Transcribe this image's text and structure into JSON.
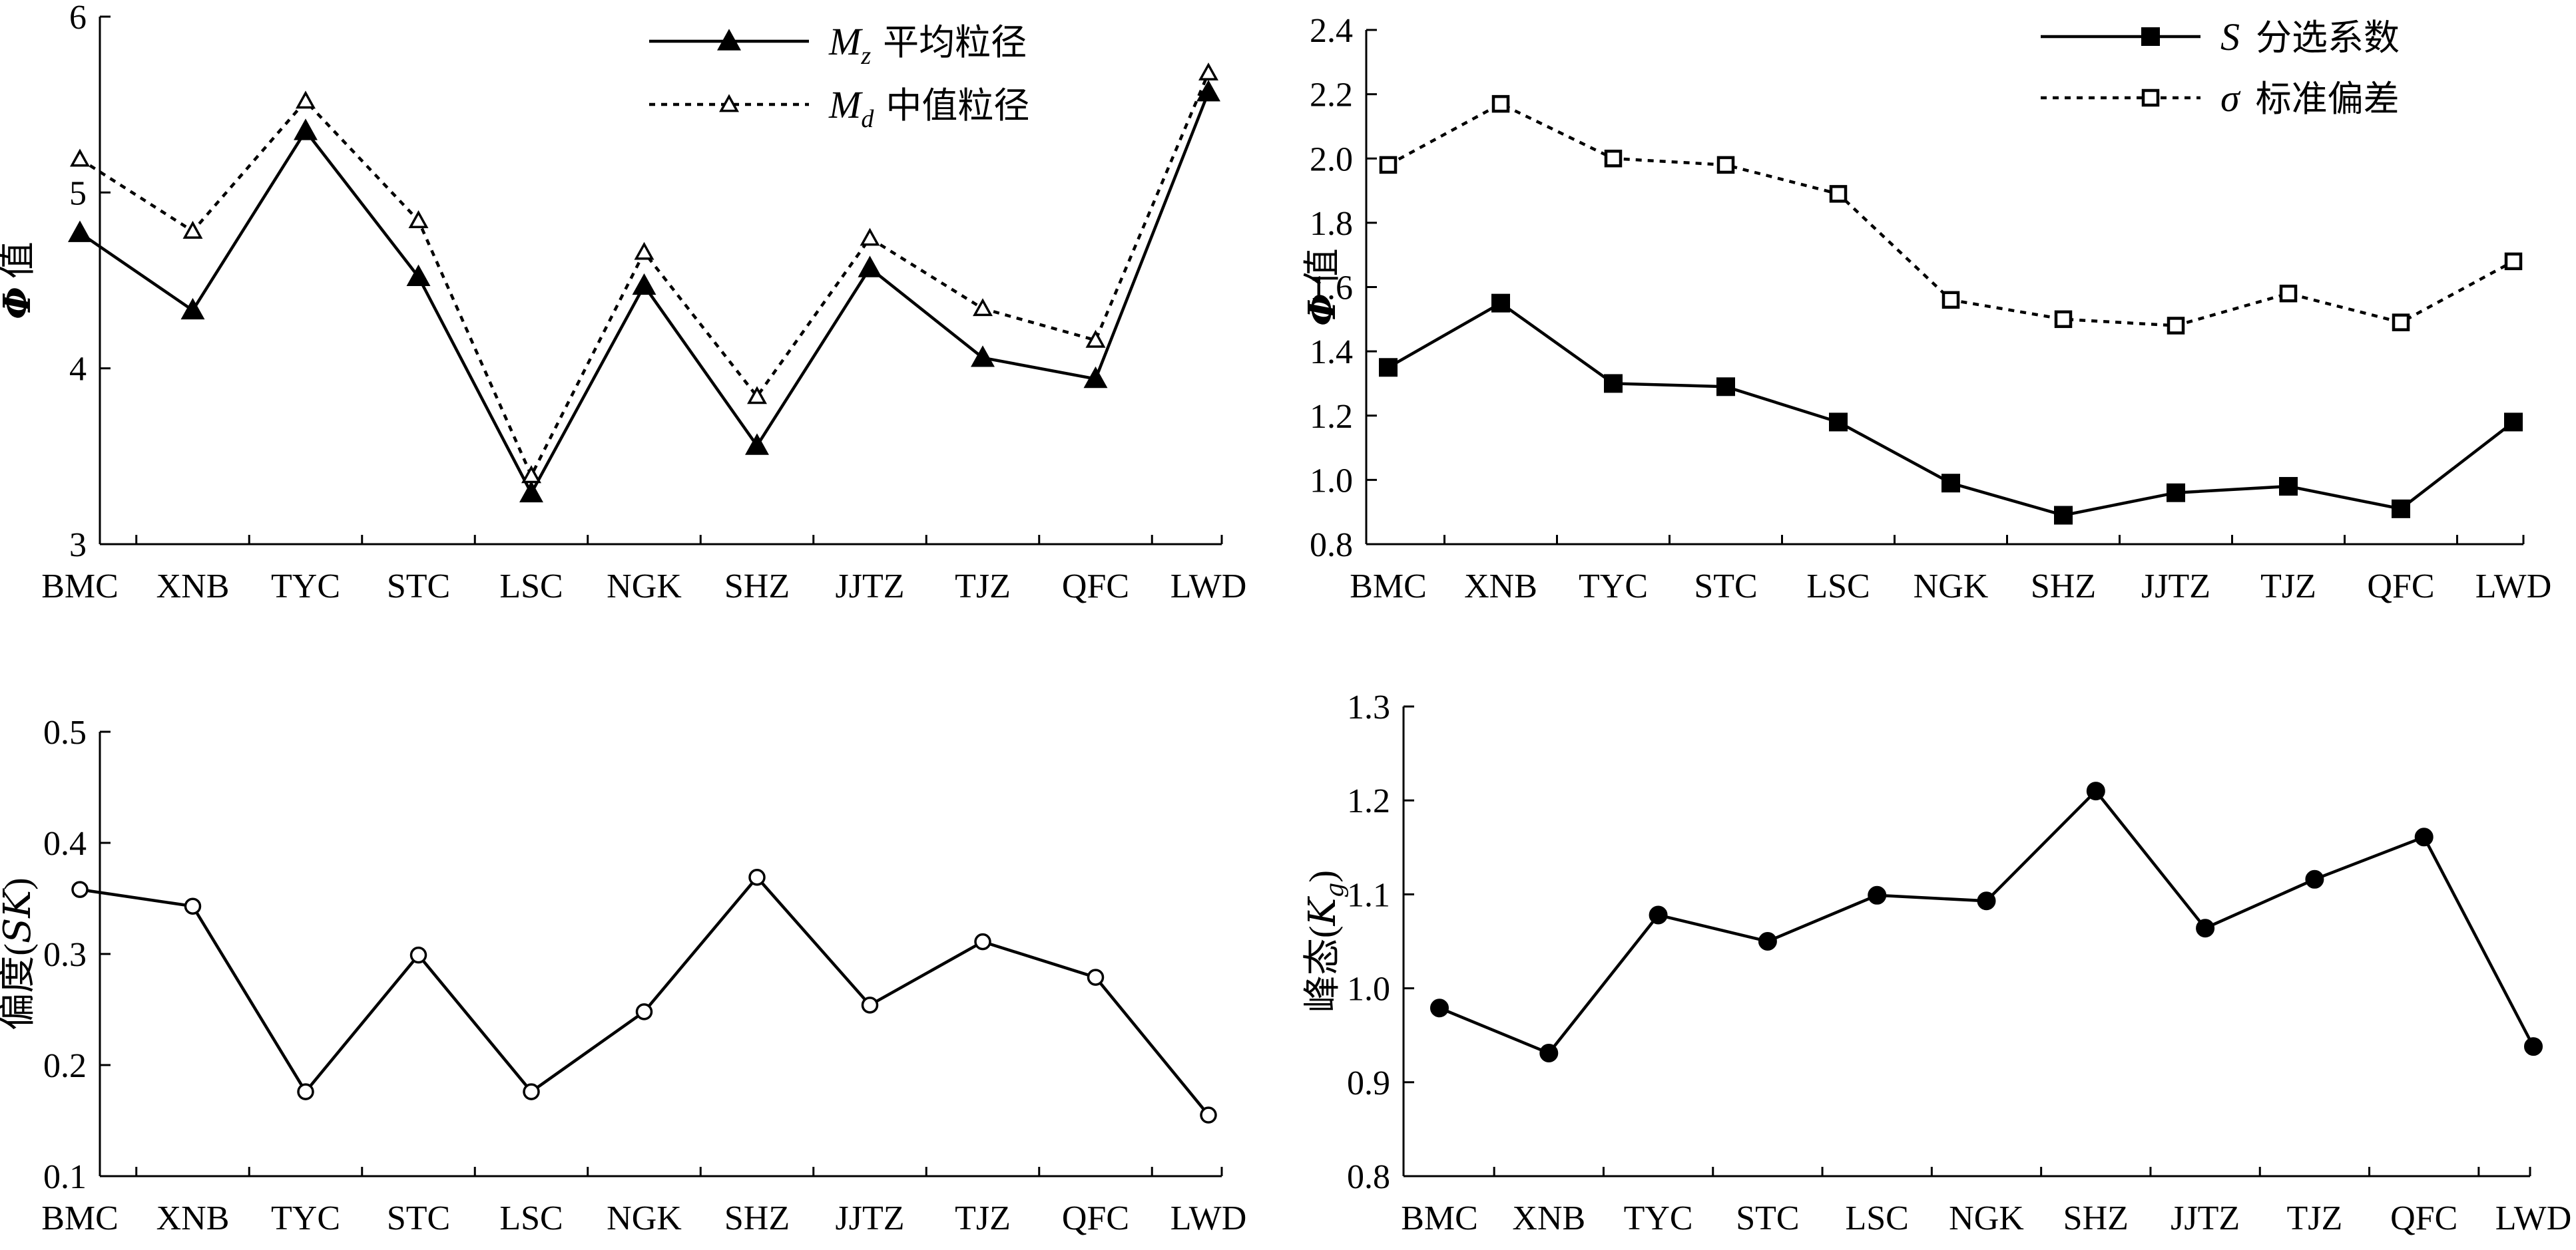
{
  "chart_data": [
    {
      "type": "line",
      "categories": [
        "BMC",
        "XNB",
        "TYC",
        "STC",
        "LSC",
        "NGK",
        "SHZ",
        "JJTZ",
        "TJZ",
        "QFC",
        "LWD"
      ],
      "ylabel": "Φ 值",
      "ylim": [
        3,
        6
      ],
      "yticks": [
        "3",
        "4",
        "5",
        "6"
      ],
      "legend_position": "top-right",
      "series": [
        {
          "name_main": "M",
          "name_sub": "z",
          "name_cn": "平均粒径",
          "style": "solid",
          "marker": "filled-triangle",
          "values": [
            4.77,
            4.33,
            5.35,
            4.52,
            3.29,
            4.47,
            3.56,
            4.57,
            4.06,
            3.94,
            5.57
          ]
        },
        {
          "name_main": "M",
          "name_sub": "d",
          "name_cn": "中值粒径",
          "style": "dotted",
          "marker": "open-triangle",
          "values": [
            5.19,
            4.78,
            5.52,
            4.84,
            3.39,
            4.66,
            3.84,
            4.74,
            4.34,
            4.16,
            5.68
          ]
        }
      ]
    },
    {
      "type": "line",
      "categories": [
        "BMC",
        "XNB",
        "TYC",
        "STC",
        "LSC",
        "NGK",
        "SHZ",
        "JJTZ",
        "TJZ",
        "QFC",
        "LWD"
      ],
      "ylabel": "Φ 值",
      "ylim": [
        0.8,
        2.4
      ],
      "yticks": [
        "0.8",
        "1.0",
        "1.2",
        "1.4",
        "1.6",
        "1.8",
        "2.0",
        "2.2",
        "2.4"
      ],
      "legend_position": "top-right",
      "series": [
        {
          "name_main": "S",
          "name_cn": "分选系数",
          "style": "solid",
          "marker": "filled-square",
          "values": [
            1.35,
            1.55,
            1.3,
            1.29,
            1.18,
            0.99,
            0.89,
            0.96,
            0.98,
            0.91,
            1.18
          ]
        },
        {
          "name_main": "σ",
          "name_cn": "标准偏差",
          "style": "dotted",
          "marker": "open-square",
          "values": [
            1.98,
            2.17,
            2.0,
            1.98,
            1.89,
            1.56,
            1.5,
            1.48,
            1.58,
            1.49,
            1.68
          ]
        }
      ]
    },
    {
      "type": "line",
      "categories": [
        "BMC",
        "XNB",
        "TYC",
        "STC",
        "LSC",
        "NGK",
        "SHZ",
        "JJTZ",
        "TJZ",
        "QFC",
        "LWD"
      ],
      "ylabel": "偏度(SK)",
      "ylim": [
        0.1,
        0.5
      ],
      "yticks": [
        "0.1",
        "0.2",
        "0.3",
        "0.4",
        "0.5"
      ],
      "series": [
        {
          "style": "solid",
          "marker": "open-circle",
          "values": [
            0.358,
            0.343,
            0.176,
            0.299,
            0.176,
            0.248,
            0.369,
            0.254,
            0.311,
            0.279,
            0.155
          ]
        }
      ]
    },
    {
      "type": "line",
      "categories": [
        "BMC",
        "XNB",
        "TYC",
        "STC",
        "LSC",
        "NGK",
        "SHZ",
        "JJTZ",
        "TJZ",
        "QFC",
        "LWD"
      ],
      "ylabel": "峰态(Kg)",
      "ylim": [
        0.8,
        1.3
      ],
      "yticks": [
        "0.8",
        "0.9",
        "1.0",
        "1.1",
        "1.2",
        "1.3"
      ],
      "series": [
        {
          "style": "solid",
          "marker": "filled-circle",
          "values": [
            0.979,
            0.931,
            1.078,
            1.05,
            1.099,
            1.093,
            1.21,
            1.064,
            1.116,
            1.161,
            0.938
          ]
        }
      ]
    }
  ]
}
